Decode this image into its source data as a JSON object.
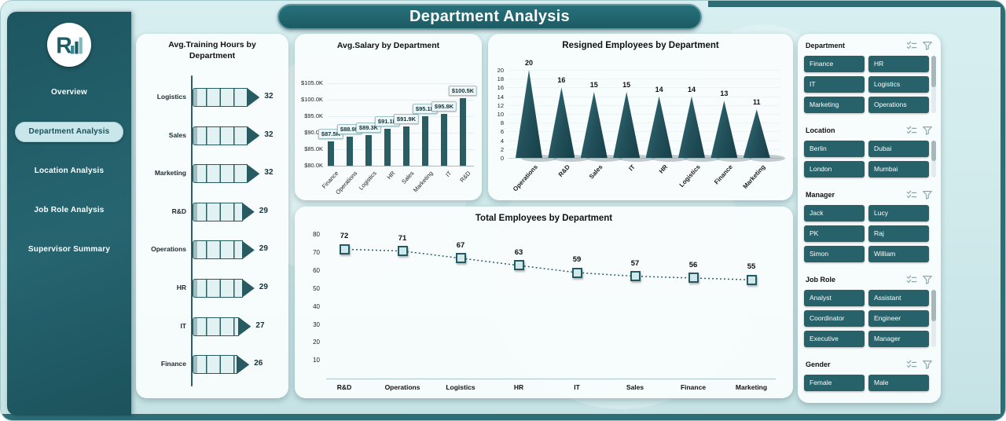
{
  "page": {
    "title": "Department Analysis"
  },
  "sidebar": {
    "nav": [
      {
        "label": "Overview",
        "active": false
      },
      {
        "label": "Department Analysis",
        "active": true
      },
      {
        "label": "Location Analysis",
        "active": false
      },
      {
        "label": "Job Role Analysis",
        "active": false
      },
      {
        "label": "Supervisor Summary",
        "active": false
      }
    ]
  },
  "slicers": [
    {
      "title": "Department",
      "items": [
        "Finance",
        "HR",
        "IT",
        "Logistics",
        "Marketing",
        "Operations"
      ],
      "scrollbar": true
    },
    {
      "title": "Location",
      "items": [
        "Berlin",
        "Dubai",
        "London",
        "Mumbai"
      ],
      "scrollbar": true
    },
    {
      "title": "Manager",
      "items": [
        "Jack",
        "Lucy",
        "PK",
        "Raj",
        "Simon",
        "William"
      ],
      "scrollbar": false
    },
    {
      "title": "Job Role",
      "items": [
        "Analyst",
        "Assistant",
        "Coordinator",
        "Engineer",
        "Executive",
        "Manager"
      ],
      "scrollbar": true
    },
    {
      "title": "Gender",
      "items": [
        "Female",
        "Male"
      ],
      "scrollbar": false
    }
  ],
  "chart_data": [
    {
      "id": "training",
      "type": "bar",
      "variant": "pencil-horizontal",
      "title": "Avg.Training Hours by Department",
      "categories": [
        "Logistics",
        "Sales",
        "Marketing",
        "R&D",
        "Operations",
        "HR",
        "IT",
        "Finance"
      ],
      "values": [
        32,
        32,
        32,
        29,
        29,
        29,
        27,
        26
      ],
      "xlim": [
        0,
        32
      ]
    },
    {
      "id": "salary",
      "type": "bar",
      "title": "Avg.Salary by Department",
      "categories": [
        "Finance",
        "Operations",
        "Logistics",
        "HR",
        "Sales",
        "Marketing",
        "IT",
        "R&D"
      ],
      "values": [
        87.5,
        88.9,
        89.3,
        91.1,
        91.9,
        95.1,
        95.8,
        100.5
      ],
      "data_labels": [
        "$87.5K",
        "$88.9K",
        "$89.3K",
        "$91.1K",
        "$91.9K",
        "$95.1K",
        "$95.8K",
        "$100.5K"
      ],
      "yticks": [
        80,
        85,
        90,
        95,
        100,
        105
      ],
      "ytick_labels": [
        "$80.0K",
        "$85.0K",
        "$90.0K",
        "$95.0K",
        "$100.0K",
        "$105.0K"
      ],
      "ylim": [
        80,
        105
      ]
    },
    {
      "id": "resigned",
      "type": "bar",
      "variant": "cone",
      "title": "Resigned Employees by Department",
      "categories": [
        "Operations",
        "R&D",
        "Sales",
        "IT",
        "HR",
        "Logistics",
        "Finance",
        "Marketing"
      ],
      "values": [
        20,
        16,
        15,
        15,
        14,
        14,
        13,
        11
      ],
      "yticks": [
        0,
        2,
        4,
        6,
        8,
        10,
        12,
        14,
        16,
        18,
        20
      ],
      "ylim": [
        0,
        20
      ]
    },
    {
      "id": "total",
      "type": "line",
      "title": "Total Employees by Department",
      "categories": [
        "R&D",
        "Operations",
        "Logistics",
        "HR",
        "IT",
        "Sales",
        "Finance",
        "Marketing"
      ],
      "values": [
        72,
        71,
        67,
        63,
        59,
        57,
        56,
        55
      ],
      "yticks": [
        10,
        20,
        30,
        40,
        50,
        60,
        70,
        80
      ],
      "ylim": [
        0,
        80
      ]
    }
  ],
  "colors": {
    "accent": "#1f5d65",
    "banner": "#1e646c",
    "slicer_button": "#27616a",
    "bar": "#2a5c63",
    "panel": "#f8fcfc",
    "background": "#cfe9ea"
  }
}
